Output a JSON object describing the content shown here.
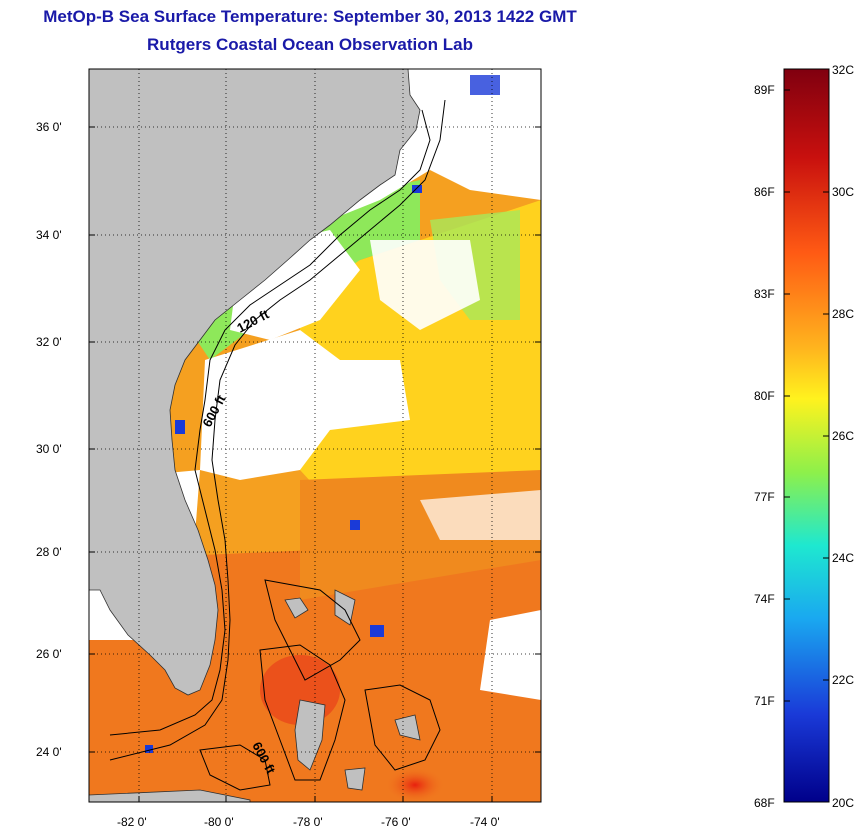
{
  "title": "MetOp-B Sea Surface Temperature:  September 30, 2013 1422 GMT",
  "subtitle": "Rutgers Coastal Ocean Observation Lab",
  "map": {
    "lat_labels": [
      "36 0'",
      "34 0'",
      "32 0'",
      "30 0'",
      "28 0'",
      "26 0'",
      "24 0'"
    ],
    "lon_labels": [
      "-82 0'",
      "-80 0'",
      "-78 0'",
      "-76 0'",
      "-74 0'"
    ],
    "contour_labels": [
      "120 ft",
      "600 ft",
      "600 ft"
    ],
    "colors": {
      "land": "#c0c0c0",
      "cloud": "#ffffff",
      "warm": "#f0781e",
      "cool": "#ffd21e"
    }
  },
  "colorbar": {
    "fahrenheit_labels": [
      "89F",
      "86F",
      "83F",
      "80F",
      "77F",
      "74F",
      "71F",
      "68F"
    ],
    "celsius_labels": [
      "32C",
      "30C",
      "28C",
      "26C",
      "24C",
      "22C",
      "20C"
    ],
    "range_c": [
      20,
      32
    ],
    "colors": [
      "#80000f",
      "#e8200e",
      "#ff7a1a",
      "#ffd21e",
      "#8ef04a",
      "#1ec8d8",
      "#1a6ee8",
      "#00008a"
    ]
  }
}
